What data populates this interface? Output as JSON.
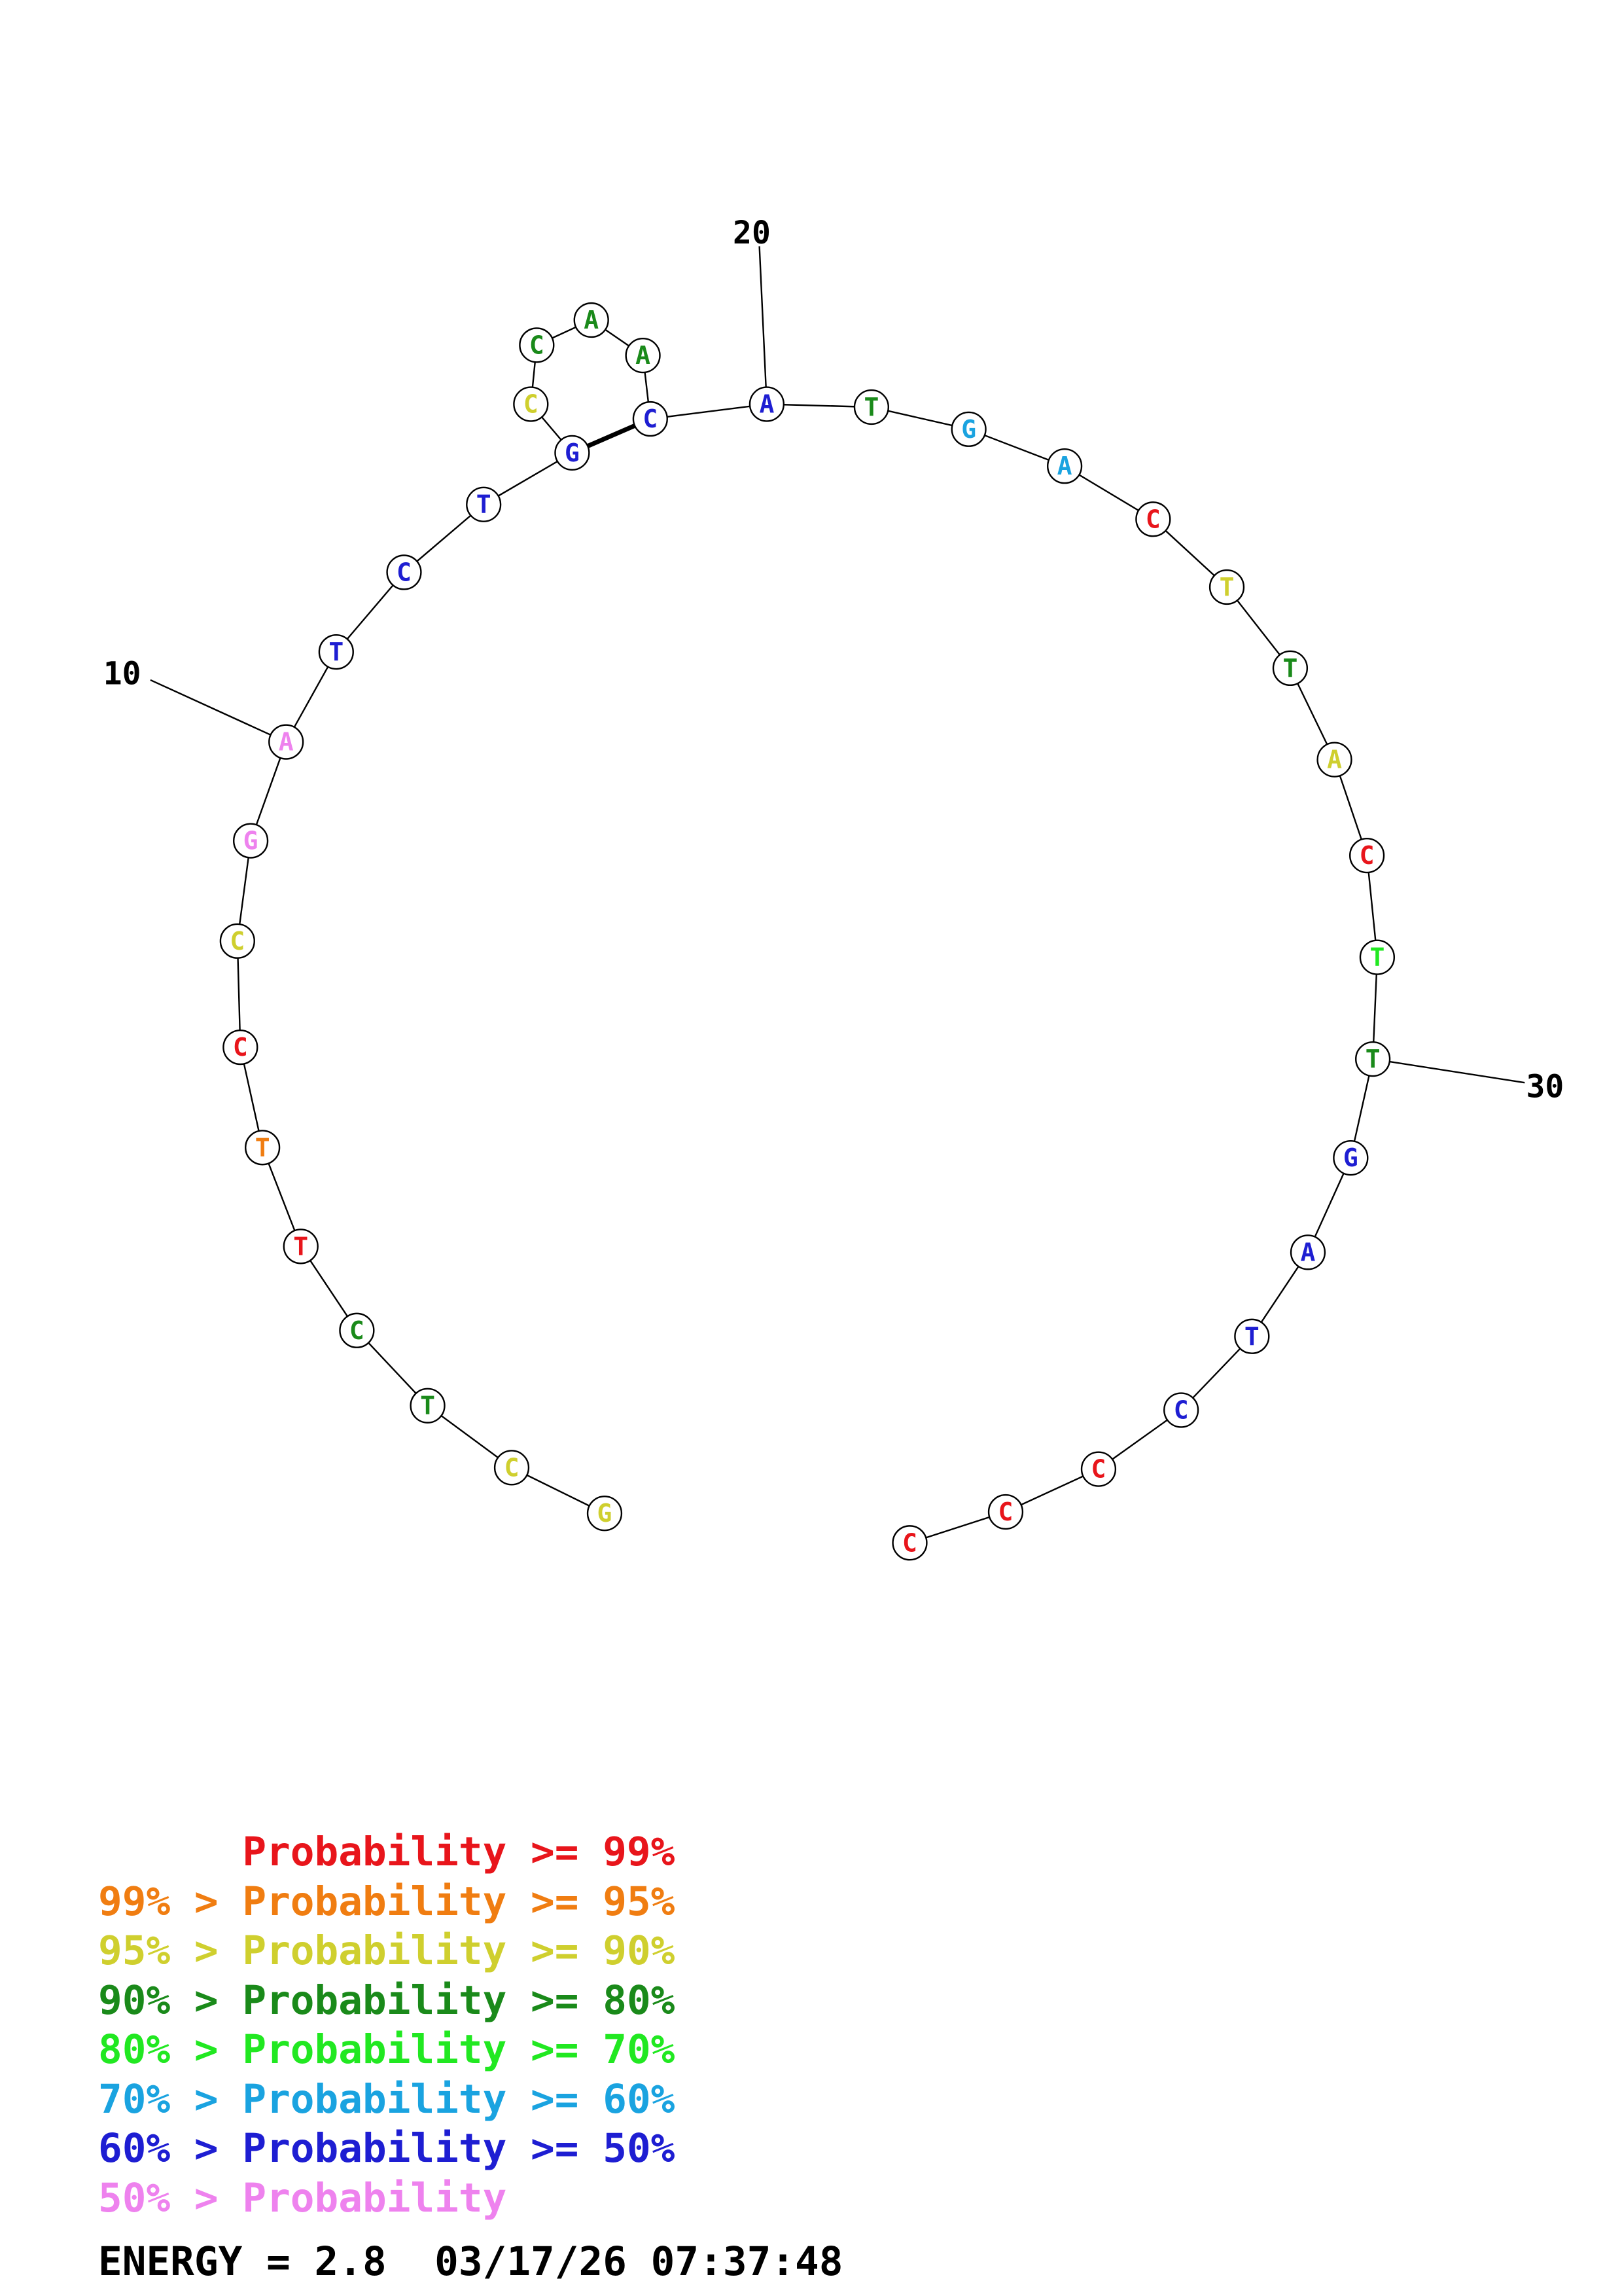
{
  "title": "",
  "colors": {
    "p99": "#e8151b",
    "p95": "#f07d11",
    "p90": "#cfcf2e",
    "p80": "#1a8a1a",
    "p70": "#21e821",
    "p60": "#1aa3e0",
    "p50": "#1e1ed2",
    "plow": "#ee82ee"
  },
  "sequence": [
    {
      "n": 1,
      "base": "G",
      "prob": "p90"
    },
    {
      "n": 2,
      "base": "C",
      "prob": "p90"
    },
    {
      "n": 3,
      "base": "T",
      "prob": "p80"
    },
    {
      "n": 4,
      "base": "C",
      "prob": "p80"
    },
    {
      "n": 5,
      "base": "T",
      "prob": "p99"
    },
    {
      "n": 6,
      "base": "T",
      "prob": "p95"
    },
    {
      "n": 7,
      "base": "C",
      "prob": "p99"
    },
    {
      "n": 8,
      "base": "C",
      "prob": "p90"
    },
    {
      "n": 9,
      "base": "G",
      "prob": "plow"
    },
    {
      "n": 10,
      "base": "A",
      "prob": "plow"
    },
    {
      "n": 11,
      "base": "T",
      "prob": "p50"
    },
    {
      "n": 12,
      "base": "C",
      "prob": "p50"
    },
    {
      "n": 13,
      "base": "T",
      "prob": "p50"
    },
    {
      "n": 14,
      "base": "G",
      "prob": "p50"
    },
    {
      "n": 15,
      "base": "C",
      "prob": "p90"
    },
    {
      "n": 16,
      "base": "C",
      "prob": "p80"
    },
    {
      "n": 17,
      "base": "A",
      "prob": "p80"
    },
    {
      "n": 18,
      "base": "A",
      "prob": "p80"
    },
    {
      "n": 19,
      "base": "C",
      "prob": "p50"
    },
    {
      "n": 20,
      "base": "A",
      "prob": "p50"
    },
    {
      "n": 21,
      "base": "T",
      "prob": "p80"
    },
    {
      "n": 22,
      "base": "G",
      "prob": "p60"
    },
    {
      "n": 23,
      "base": "A",
      "prob": "p60"
    },
    {
      "n": 24,
      "base": "C",
      "prob": "p99"
    },
    {
      "n": 25,
      "base": "T",
      "prob": "p90"
    },
    {
      "n": 26,
      "base": "T",
      "prob": "p80"
    },
    {
      "n": 27,
      "base": "A",
      "prob": "p90"
    },
    {
      "n": 28,
      "base": "C",
      "prob": "p99"
    },
    {
      "n": 29,
      "base": "T",
      "prob": "p70"
    },
    {
      "n": 30,
      "base": "T",
      "prob": "p80"
    },
    {
      "n": 31,
      "base": "G",
      "prob": "p50"
    },
    {
      "n": 32,
      "base": "A",
      "prob": "p50"
    },
    {
      "n": 33,
      "base": "T",
      "prob": "p50"
    },
    {
      "n": 34,
      "base": "C",
      "prob": "p50"
    },
    {
      "n": 35,
      "base": "C",
      "prob": "p99"
    },
    {
      "n": 36,
      "base": "C",
      "prob": "p99"
    },
    {
      "n": 37,
      "base": "C",
      "prob": "p99"
    }
  ],
  "pairs": [
    [
      14,
      19
    ]
  ],
  "tick_labels": [
    {
      "n": 10,
      "label": "10"
    },
    {
      "n": 20,
      "label": "20"
    },
    {
      "n": 30,
      "label": "30"
    }
  ],
  "legend": [
    {
      "prefix": "    ",
      "text": "Probability >= 99%",
      "color_key": "p99"
    },
    {
      "prefix": "99% > ",
      "text": "Probability >= 95%",
      "color_key": "p95"
    },
    {
      "prefix": "95% > ",
      "text": "Probability >= 90%",
      "color_key": "p90"
    },
    {
      "prefix": "90% > ",
      "text": "Probability >= 80%",
      "color_key": "p80"
    },
    {
      "prefix": "80% > ",
      "text": "Probability >= 70%",
      "color_key": "p70"
    },
    {
      "prefix": "70% > ",
      "text": "Probability >= 60%",
      "color_key": "p60"
    },
    {
      "prefix": "60% > ",
      "text": "Probability >= 50%",
      "color_key": "p50"
    },
    {
      "prefix": "50% > ",
      "text": "Probability",
      "color_key": "plow"
    }
  ],
  "energy": {
    "label": "ENERGY = 2.8",
    "timestamp": "03/17/26 07:37:48"
  }
}
